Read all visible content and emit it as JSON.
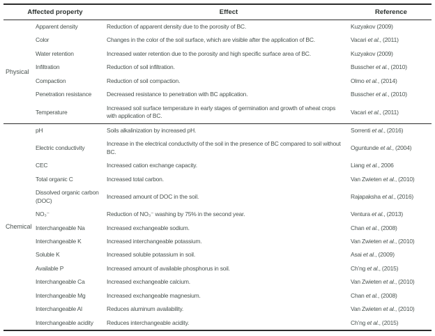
{
  "table": {
    "columns": {
      "property": "Affected property",
      "effect": "Effect",
      "reference": "Reference"
    },
    "groups": [
      {
        "label": "Physical",
        "rows": [
          {
            "property": "Apparent density",
            "effect": "Reduction of apparent density due to the porosity of BC.",
            "reference": "Kuzyakov (2009)"
          },
          {
            "property": "Color",
            "effect": "Changes in the color of the soil surface, which are visible after the application of BC.",
            "reference": "Vacari et al., (2011)"
          },
          {
            "property": "Water retention",
            "effect": "Increased water retention due to the porosity and high specific surface area of BC.",
            "reference": "Kuzyakov (2009)"
          },
          {
            "property": "Infiltration",
            "effect": "Reduction of soil infiltration.",
            "reference": "Busscher et al., (2010)"
          },
          {
            "property": "Compaction",
            "effect": "Reduction of soil compaction.",
            "reference": "Olmo et al., (2014)"
          },
          {
            "property": "Penetration resistance",
            "effect": "Decreased resistance to penetration with BC application.",
            "reference": "Busscher et al., (2010)"
          },
          {
            "property": "Temperature",
            "effect": "Increased soil surface temperature in early stages of germination and growth of wheat crops with application of BC.",
            "reference": "Vacari et al., (2011)"
          }
        ]
      },
      {
        "label": "Chemical",
        "rows": [
          {
            "property": "pH",
            "effect": "Soils alkalinization by increased pH.",
            "reference": "Sorrenti et al., (2016)"
          },
          {
            "property": "Electric conductivity",
            "effect": "Increase in the electrical conductivity of the soil in the presence of BC compared to soil without BC.",
            "reference": "Oguntunde et al., (2004)"
          },
          {
            "property": "CEC",
            "effect": "Increased cation exchange capacity.",
            "reference": "Liang et al., 2006"
          },
          {
            "property": "Total organic C",
            "effect": "Increased total carbon.",
            "reference": "Van Zwieten et al., (2010)"
          },
          {
            "property": "Dissolved organic carbon (DOC)",
            "effect": "Increased amount of DOC in the soil.",
            "reference": "Rajapaksha et al., (2016)"
          },
          {
            "property": "NO₃⁻",
            "effect": "Reduction of NO₃⁻ washing by 75% in the second year.",
            "reference": "Ventura et al., (2013)"
          },
          {
            "property": "Interchangeable Na",
            "effect": "Increased exchangeable sodium.",
            "reference": "Chan et al., (2008)"
          },
          {
            "property": "Interchangeable K",
            "effect": "Increased interchangeable potassium.",
            "reference": "Van Zwieten et al., (2010)"
          },
          {
            "property": "Soluble K",
            "effect": "Increased soluble potassium in soil.",
            "reference": "Asai et al., (2009)"
          },
          {
            "property": "Available P",
            "effect": "Increased amount of available phosphorus in soil.",
            "reference": "Ch’ng et al., (2015)"
          },
          {
            "property": "Interchangeable Ca",
            "effect": "Increased exchangeable calcium.",
            "reference": "Van Zwieten et al., (2010)"
          },
          {
            "property": "Interchangeable Mg",
            "effect": "Increased exchangeable magnesium.",
            "reference": "Chan et al., (2008)"
          },
          {
            "property": "Interchangeable Al",
            "effect": "Reduces aluminum availability.",
            "reference": "Van Zwieten et al., (2010)"
          },
          {
            "property": "Interchangeable acidity",
            "effect": "Reduces interchangeable acidity.",
            "reference": "Ch’ng et al., (2015)"
          }
        ]
      }
    ]
  },
  "colors": {
    "body_text": "#4a5350",
    "heading_text": "#2d3331",
    "rule": "#2b2b2b",
    "background": "#ffffff"
  }
}
